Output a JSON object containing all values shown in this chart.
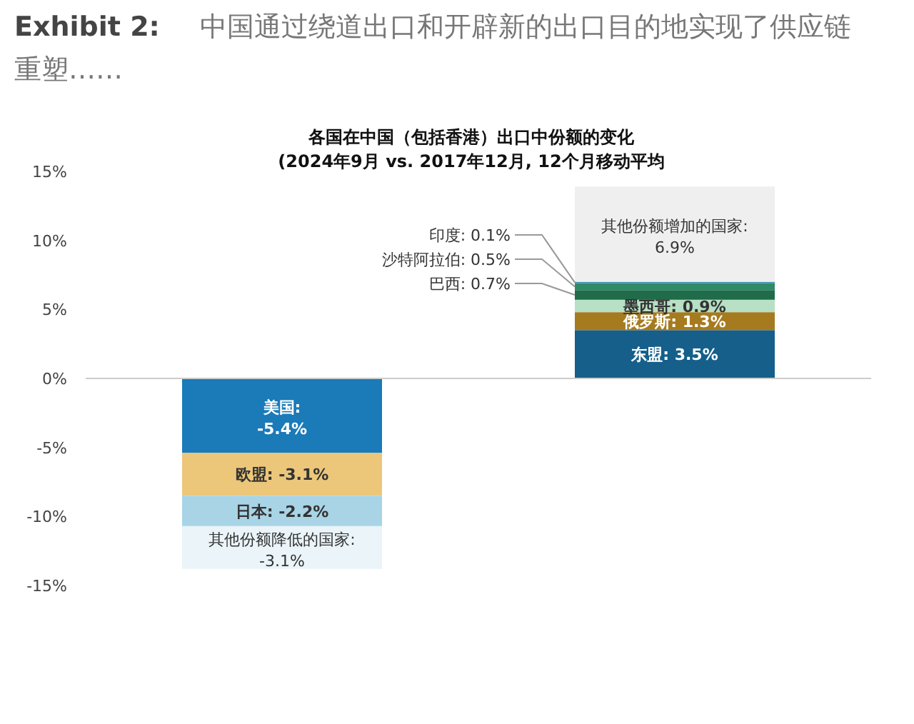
{
  "chart_data": {
    "type": "bar",
    "stacked": true,
    "title": "Exhibit 2:",
    "subtitle": "中国通过绕道出口和开辟新的出口目的地实现了供应链重塑……",
    "annotations": [
      "各国在中国（包括香港）出口中份额的变化",
      "(2024年9月 vs. 2017年12月, 12个月移动平均"
    ],
    "categories": [
      null,
      null
    ],
    "series": [
      {
        "name": "美国:",
        "color": "#1b7ab8",
        "values": [
          -5.4,
          null
        ],
        "value_labels": [
          "-5.4%",
          null
        ]
      },
      {
        "name": "欧盟:",
        "color": "#ecc77a",
        "values": [
          -3.1,
          null
        ],
        "value_labels": [
          "-3.1%",
          null
        ]
      },
      {
        "name": "日本:",
        "color": "#a8d4e6",
        "values": [
          -2.2,
          null
        ],
        "value_labels": [
          "-2.2%",
          null
        ]
      },
      {
        "name": "其他份额降低的国家:",
        "color": "#eaf4f9",
        "values": [
          -3.1,
          null
        ],
        "value_labels": [
          "-3.1%",
          null
        ]
      },
      {
        "name": "东盟:",
        "color": "#155f8a",
        "values": [
          null,
          3.5
        ],
        "value_labels": [
          null,
          "3.5%"
        ]
      },
      {
        "name": "俄罗斯:",
        "color": "#a67a1e",
        "values": [
          null,
          1.3
        ],
        "value_labels": [
          null,
          "1.3%"
        ]
      },
      {
        "name": "墨西哥:",
        "color": "#b7e0c4",
        "values": [
          null,
          0.9
        ],
        "value_labels": [
          null,
          "0.9%"
        ]
      },
      {
        "name": "巴西:",
        "color": "#1f6b4a",
        "values": [
          null,
          0.7
        ],
        "value_labels": [
          null,
          "0.7%"
        ]
      },
      {
        "name": "沙特阿拉伯:",
        "color": "#2f8a66",
        "values": [
          null,
          0.5
        ],
        "value_labels": [
          null,
          "0.5%"
        ]
      },
      {
        "name": "印度:",
        "color": "#3a8fb0",
        "values": [
          null,
          0.1
        ],
        "value_labels": [
          null,
          "0.1%"
        ]
      },
      {
        "name": "其他份额增加的国家:",
        "color": "#efefef",
        "values": [
          null,
          6.9
        ],
        "value_labels": [
          null,
          "6.9%"
        ]
      }
    ],
    "ylim": [
      -15,
      15
    ],
    "yticks": [
      {
        "value": 15,
        "label": "15%"
      },
      {
        "value": 10,
        "label": "10%"
      },
      {
        "value": 5,
        "label": "5%"
      },
      {
        "value": 0,
        "label": "0%"
      },
      {
        "value": -5,
        "label": "-5%"
      },
      {
        "value": -10,
        "label": "-10%"
      },
      {
        "value": -15,
        "label": "-15%"
      }
    ]
  }
}
